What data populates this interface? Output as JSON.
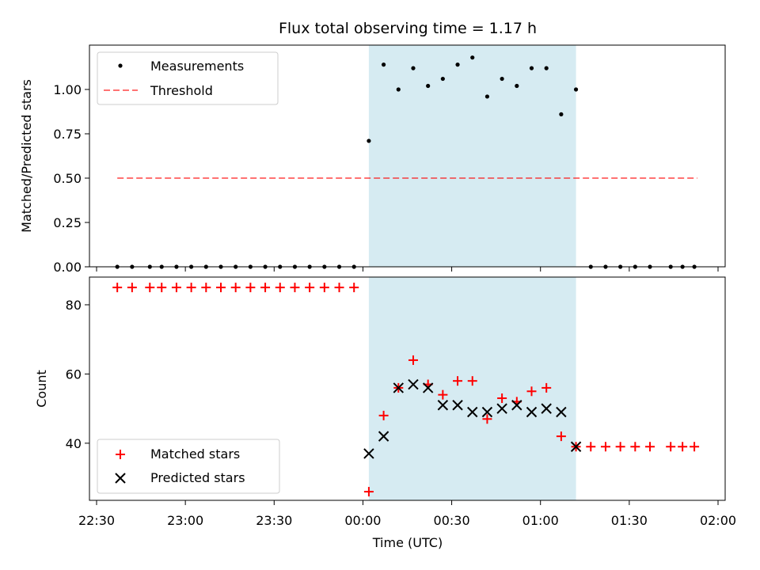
{
  "chart_data": {
    "type": "scatter",
    "title": "Flux total observing time = 1.17 h",
    "xlabel": "Time (UTC)",
    "x_ticks": [
      "22:30",
      "23:00",
      "23:30",
      "00:00",
      "00:30",
      "01:00",
      "01:30",
      "02:00"
    ],
    "colors": {
      "shade": "#add8e6",
      "threshold": "#ff0000",
      "matched": "#ff0000",
      "predicted": "#000000",
      "measurement": "#000000"
    },
    "shaded_region": {
      "from": "00:02",
      "to": "01:12"
    },
    "panels": [
      {
        "ylabel": "Matched/Predicted stars",
        "ylim": [
          0,
          1.25
        ],
        "y_ticks": [
          "0.00",
          "0.25",
          "0.50",
          "0.75",
          "1.00"
        ],
        "legend": [
          "Measurements",
          "Threshold"
        ],
        "threshold": {
          "name": "Threshold",
          "value": 0.5,
          "from": "22:37",
          "to": "01:53"
        },
        "series": [
          {
            "name": "Measurements",
            "marker": "dot",
            "points": [
              [
                "22:37",
                0
              ],
              [
                "22:42",
                0
              ],
              [
                "22:48",
                0
              ],
              [
                "22:52",
                0
              ],
              [
                "22:57",
                0
              ],
              [
                "23:02",
                0
              ],
              [
                "23:07",
                0
              ],
              [
                "23:12",
                0
              ],
              [
                "23:17",
                0
              ],
              [
                "23:22",
                0
              ],
              [
                "23:27",
                0
              ],
              [
                "23:32",
                0
              ],
              [
                "23:37",
                0
              ],
              [
                "23:42",
                0
              ],
              [
                "23:47",
                0
              ],
              [
                "23:52",
                0
              ],
              [
                "23:57",
                0
              ],
              [
                "00:02",
                0.71
              ],
              [
                "00:07",
                1.14
              ],
              [
                "00:12",
                1.0
              ],
              [
                "00:17",
                1.12
              ],
              [
                "00:22",
                1.02
              ],
              [
                "00:27",
                1.06
              ],
              [
                "00:32",
                1.14
              ],
              [
                "00:37",
                1.18
              ],
              [
                "00:42",
                0.96
              ],
              [
                "00:47",
                1.06
              ],
              [
                "00:52",
                1.02
              ],
              [
                "00:57",
                1.12
              ],
              [
                "01:02",
                1.12
              ],
              [
                "01:07",
                0.86
              ],
              [
                "01:12",
                1.0
              ],
              [
                "01:17",
                0
              ],
              [
                "01:22",
                0
              ],
              [
                "01:27",
                0
              ],
              [
                "01:32",
                0
              ],
              [
                "01:37",
                0
              ],
              [
                "01:44",
                0
              ],
              [
                "01:48",
                0
              ],
              [
                "01:52",
                0
              ]
            ]
          }
        ]
      },
      {
        "ylabel": "Count",
        "ylim": [
          23.5,
          88
        ],
        "y_ticks": [
          "40",
          "60",
          "80"
        ],
        "legend": [
          "Matched stars",
          "Predicted stars"
        ],
        "series": [
          {
            "name": "Matched stars",
            "marker": "plus",
            "points": [
              [
                "22:37",
                85
              ],
              [
                "22:42",
                85
              ],
              [
                "22:48",
                85
              ],
              [
                "22:52",
                85
              ],
              [
                "22:57",
                85
              ],
              [
                "23:02",
                85
              ],
              [
                "23:07",
                85
              ],
              [
                "23:12",
                85
              ],
              [
                "23:17",
                85
              ],
              [
                "23:22",
                85
              ],
              [
                "23:27",
                85
              ],
              [
                "23:32",
                85
              ],
              [
                "23:37",
                85
              ],
              [
                "23:42",
                85
              ],
              [
                "23:47",
                85
              ],
              [
                "23:52",
                85
              ],
              [
                "23:57",
                85
              ],
              [
                "00:02",
                26
              ],
              [
                "00:07",
                48
              ],
              [
                "00:12",
                56
              ],
              [
                "00:17",
                64
              ],
              [
                "00:22",
                57
              ],
              [
                "00:27",
                54
              ],
              [
                "00:32",
                58
              ],
              [
                "00:37",
                58
              ],
              [
                "00:42",
                47
              ],
              [
                "00:47",
                53
              ],
              [
                "00:52",
                52
              ],
              [
                "00:57",
                55
              ],
              [
                "01:02",
                56
              ],
              [
                "01:07",
                42
              ],
              [
                "01:12",
                39
              ],
              [
                "01:17",
                39
              ],
              [
                "01:22",
                39
              ],
              [
                "01:27",
                39
              ],
              [
                "01:32",
                39
              ],
              [
                "01:37",
                39
              ],
              [
                "01:44",
                39
              ],
              [
                "01:48",
                39
              ],
              [
                "01:52",
                39
              ]
            ]
          },
          {
            "name": "Predicted stars",
            "marker": "x",
            "points": [
              [
                "00:02",
                37
              ],
              [
                "00:07",
                42
              ],
              [
                "00:12",
                56
              ],
              [
                "00:17",
                57
              ],
              [
                "00:22",
                56
              ],
              [
                "00:27",
                51
              ],
              [
                "00:32",
                51
              ],
              [
                "00:37",
                49
              ],
              [
                "00:42",
                49
              ],
              [
                "00:47",
                50
              ],
              [
                "00:52",
                51
              ],
              [
                "00:57",
                49
              ],
              [
                "01:02",
                50
              ],
              [
                "01:07",
                49
              ],
              [
                "01:12",
                39
              ]
            ]
          }
        ]
      }
    ]
  }
}
